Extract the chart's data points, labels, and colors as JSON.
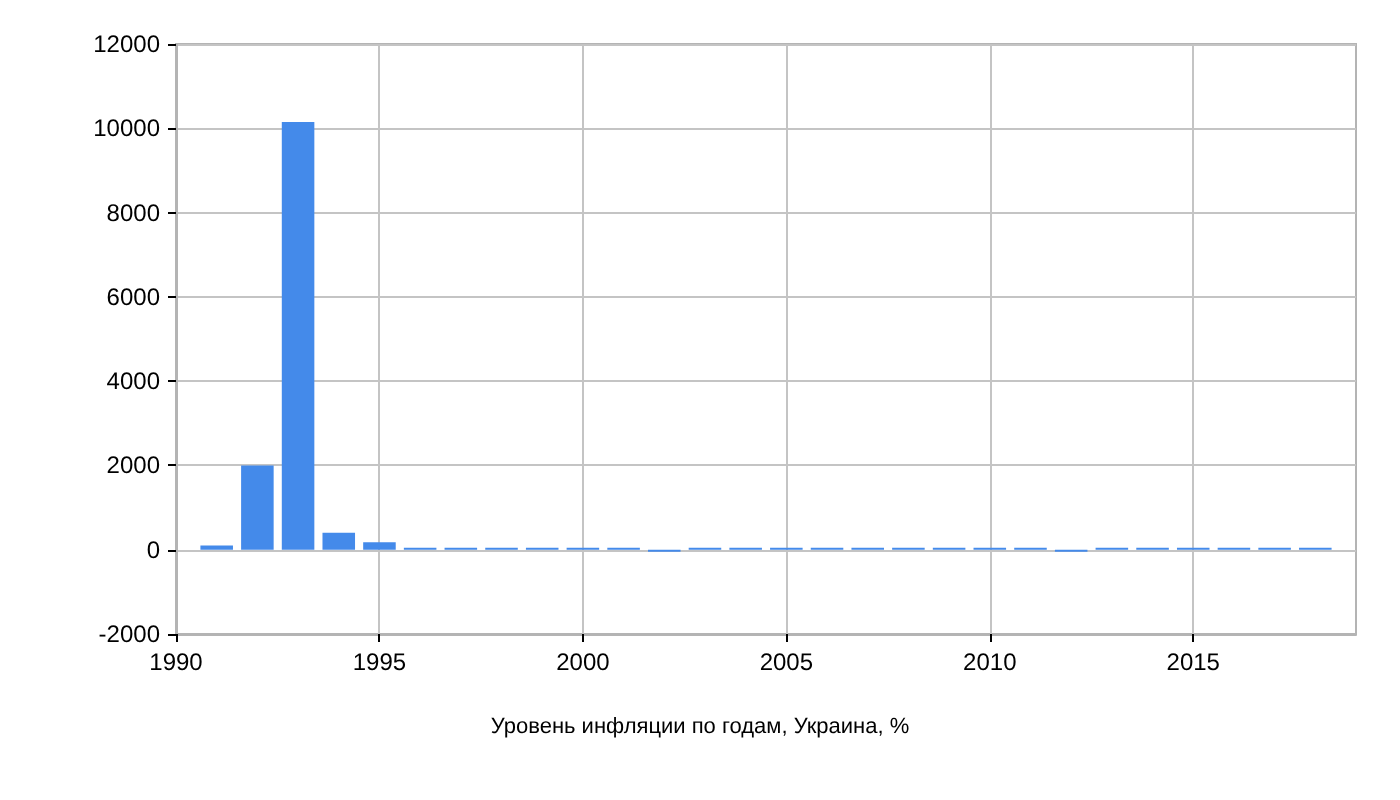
{
  "chart_data": {
    "type": "bar",
    "title": "Уровень инфляции по годам, Украина, %",
    "x": [
      1991,
      1992,
      1993,
      1994,
      1995,
      1996,
      1997,
      1998,
      1999,
      2000,
      2001,
      2002,
      2003,
      2004,
      2005,
      2006,
      2007,
      2008,
      2009,
      2010,
      2011,
      2012,
      2013,
      2014,
      2015,
      2016,
      2017,
      2018
    ],
    "values": [
      100,
      2000,
      10150,
      400,
      180,
      40,
      10,
      20,
      19,
      26,
      6,
      -1,
      8,
      12,
      10,
      12,
      17,
      22,
      12,
      9,
      5,
      -0.2,
      1,
      25,
      43,
      12,
      14,
      10
    ],
    "color": "#448aea",
    "xlim": [
      1990,
      2019
    ],
    "xticks": [
      1990,
      1995,
      2000,
      2005,
      2010,
      2015
    ],
    "ylim": [
      -2000,
      12000
    ],
    "yticks": [
      -2000,
      0,
      2000,
      4000,
      6000,
      8000,
      10000,
      12000
    ],
    "grid": true
  }
}
